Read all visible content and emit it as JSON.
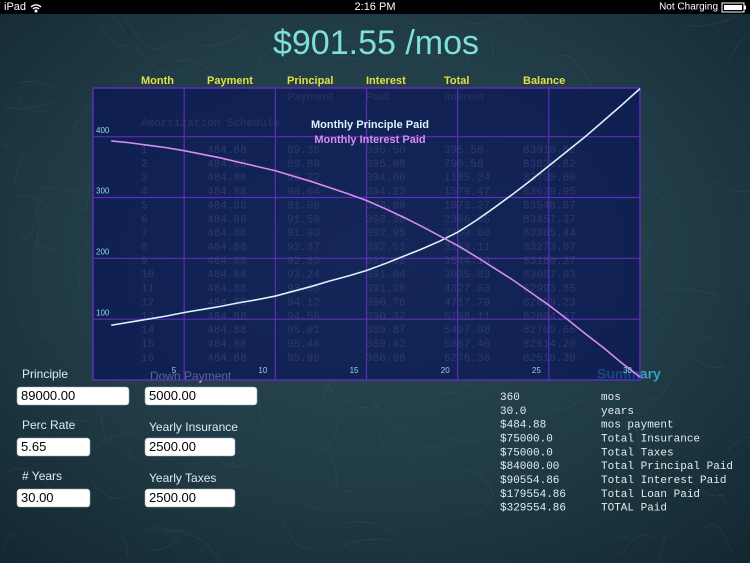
{
  "status_bar": {
    "device": "iPad",
    "time": "2:16 PM",
    "battery": "Not Charging"
  },
  "title": "$901.55 /mos",
  "table": {
    "caption": "Amortization Schedule",
    "columns": [
      [
        "Month"
      ],
      [
        "Payment"
      ],
      [
        "Principal",
        "Payment"
      ],
      [
        "Interest",
        "Paid"
      ],
      [
        "Total",
        "Interest"
      ],
      [
        "Balance"
      ]
    ],
    "rows": [
      [
        "1",
        "484.88",
        "89.38",
        "395.50",
        "395.50",
        "83910.62"
      ],
      [
        "2",
        "484.88",
        "89.80",
        "395.08",
        "790.58",
        "83820.82"
      ],
      [
        "3",
        "484.88",
        "90.22",
        "394.66",
        "1185.24",
        "83730.60"
      ],
      [
        "4",
        "484.88",
        "90.64",
        "394.23",
        "1579.47",
        "83639.95"
      ],
      [
        "5",
        "484.88",
        "91.08",
        "393.80",
        "1973.27",
        "83548.87"
      ],
      [
        "6",
        "484.88",
        "91.50",
        "393.38",
        "2366.65",
        "83457.37"
      ],
      [
        "7",
        "484.88",
        "91.93",
        "392.95",
        "2759.60",
        "83365.44"
      ],
      [
        "8",
        "484.88",
        "92.37",
        "392.51",
        "3152.11",
        "83273.07"
      ],
      [
        "9",
        "484.88",
        "92.80",
        "392.08",
        "3544.19",
        "83180.27"
      ],
      [
        "10",
        "484.88",
        "93.24",
        "391.64",
        "3935.83",
        "83087.03"
      ],
      [
        "11",
        "484.88",
        "93.68",
        "391.20",
        "4327.03",
        "82993.35"
      ],
      [
        "12",
        "484.88",
        "94.12",
        "390.76",
        "4717.79",
        "82899.23"
      ],
      [
        "13",
        "484.88",
        "94.56",
        "390.32",
        "5108.11",
        "82804.67"
      ],
      [
        "14",
        "484.88",
        "95.01",
        "389.87",
        "5497.98",
        "82709.66"
      ],
      [
        "15",
        "484.88",
        "95.46",
        "389.42",
        "5887.40",
        "82614.20"
      ],
      [
        "16",
        "484.88",
        "95.90",
        "388.98",
        "6276.38",
        "82518.30"
      ]
    ]
  },
  "chart_data": {
    "type": "line",
    "x": [
      1,
      2,
      3,
      4,
      5,
      6,
      7,
      8,
      9,
      10,
      11,
      12,
      13,
      14,
      15,
      16,
      17,
      18,
      19,
      20,
      21,
      22,
      23,
      24,
      25,
      26,
      27,
      28,
      29,
      30
    ],
    "series": [
      {
        "name": "Monthly Principle Paid",
        "color": "#d8f4f8",
        "values": [
          90,
          95,
          100,
          105,
          111,
          116,
          121,
          127,
          132,
          138,
          146,
          154,
          163,
          171,
          180,
          191,
          203,
          215,
          228,
          243,
          262,
          283,
          305,
          328,
          352,
          376,
          400,
          426,
          452,
          479
        ]
      },
      {
        "name": "Monthly Interest Paid",
        "color": "#d58cf5",
        "values": [
          393,
          390,
          386,
          382,
          377,
          371,
          365,
          358,
          351,
          344,
          335,
          326,
          316,
          306,
          295,
          282,
          268,
          253,
          237,
          221,
          203,
          184,
          165,
          144,
          123,
          100,
          76,
          53,
          28,
          5
        ]
      }
    ],
    "xlim": [
      0,
      30
    ],
    "xticks": [
      5,
      10,
      15,
      20,
      25,
      30
    ],
    "ylim": [
      0,
      480
    ],
    "yticks": [
      100,
      200,
      300,
      400
    ],
    "grid": true,
    "grid_color": "#5b2fb8"
  },
  "form": {
    "fields": [
      {
        "label": "Principle",
        "value": "89000.00"
      },
      {
        "label": "Down Payment",
        "value": "5000.00"
      },
      {
        "label": "Perc Rate",
        "value": "5.65"
      },
      {
        "label": "Yearly Insurance",
        "value": "2500.00"
      },
      {
        "label": "# Years",
        "value": "30.00"
      },
      {
        "label": "Yearly Taxes",
        "value": "2500.00"
      }
    ]
  },
  "summary": {
    "title": "Summary",
    "rows": [
      [
        "360",
        "mos"
      ],
      [
        "30.0",
        "years"
      ],
      [
        "$484.88",
        "mos payment"
      ],
      [
        "$75000.0",
        "Total Insurance"
      ],
      [
        "$75000.0",
        "Total Taxes"
      ],
      [
        "$84000.00",
        "Total Principal Paid"
      ],
      [
        "$90554.86",
        "Total Interest Paid"
      ],
      [
        "$179554.86",
        "Total Loan Paid"
      ],
      [
        "$329554.86",
        "TOTAL Paid"
      ]
    ]
  }
}
